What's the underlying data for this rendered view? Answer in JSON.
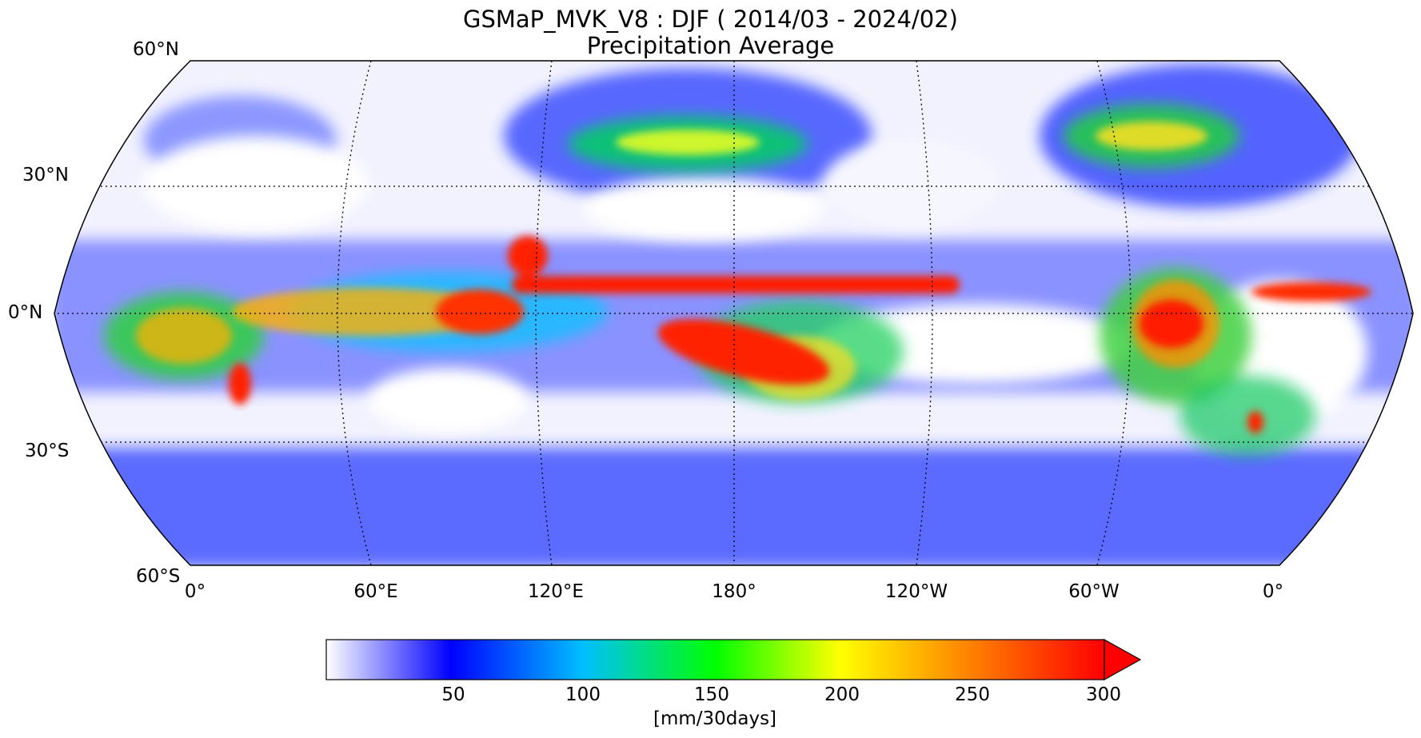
{
  "title": "GSMaP_MVK_V8 : DJF ( 2014/03 - 2024/02)",
  "subtitle": "Precipitation Average",
  "map": {
    "projection": "Robinson",
    "central_longitude": "180°",
    "lat_range": [
      "60°S",
      "60°N"
    ],
    "lat_labels": [
      "60°N",
      "30°N",
      "0°N",
      "30°S",
      "60°S"
    ],
    "lon_labels": [
      "0°",
      "60°E",
      "120°E",
      "180°",
      "120°W",
      "60°W",
      "0°"
    ],
    "gridlines": "dotted"
  },
  "colorbar": {
    "unit": "[mm/30days]",
    "ticks": [
      "50",
      "100",
      "150",
      "200",
      "250",
      "300"
    ],
    "extend": "max",
    "colors": [
      "#ffffff",
      "#0000ff",
      "#00bfff",
      "#00ff00",
      "#ffff00",
      "#ff8000",
      "#ff0000"
    ]
  }
}
